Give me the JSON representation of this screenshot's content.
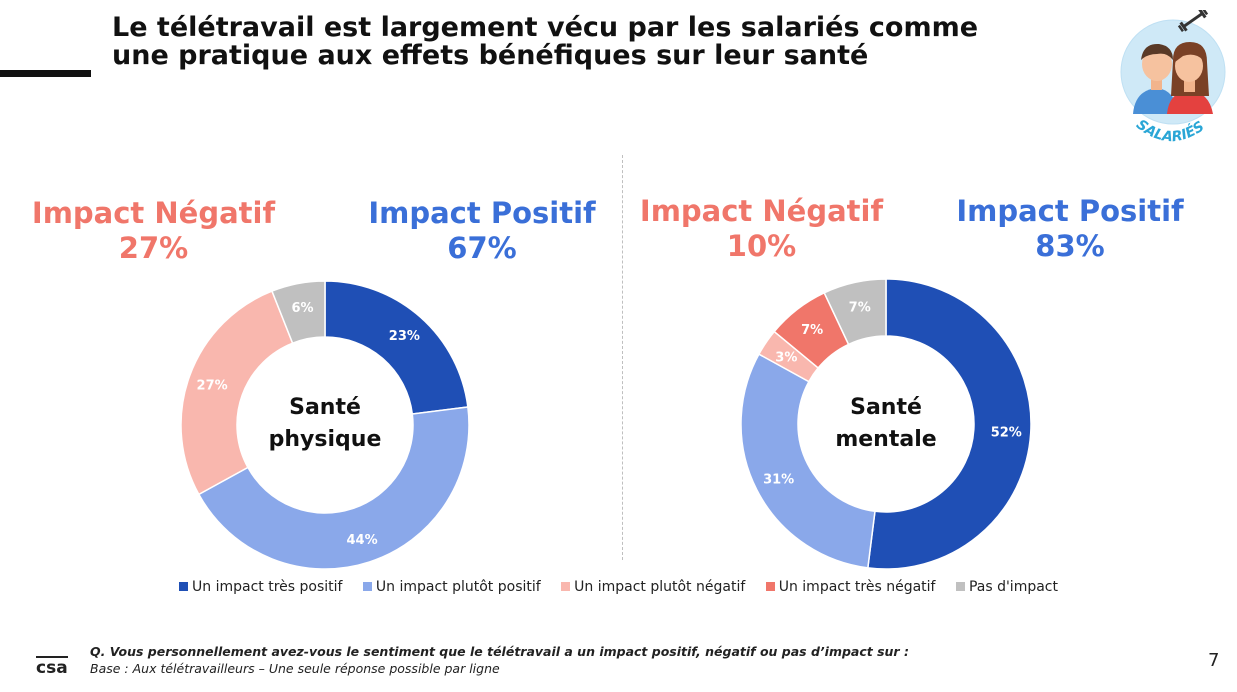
{
  "header": {
    "title_line1": "Le télétravail est largement vécu par les salariés comme",
    "title_line2": "une pratique aux effets bénéfiques sur leur santé",
    "badge_label": "SALARIÉS",
    "badge_icon": "couple-people-icon"
  },
  "panels": {
    "physique": {
      "neg_label": "Impact Négatif",
      "neg_value": "27%",
      "pos_label": "Impact Positif",
      "pos_value": "67%",
      "center_line1": "Santé",
      "center_line2": "physique"
    },
    "mentale": {
      "neg_label": "Impact Négatif",
      "neg_value": "10%",
      "pos_label": "Impact Positif",
      "pos_value": "83%",
      "center_line1": "Santé",
      "center_line2": "mentale"
    }
  },
  "chart_data": [
    {
      "type": "pie",
      "variant": "donut",
      "categories": [
        "Un impact très positif",
        "Un impact plutôt positif",
        "Un impact plutôt négatif",
        "Un impact très négatif",
        "Pas d'impact"
      ],
      "values": [
        23,
        44,
        27,
        0,
        6
      ],
      "data_labels": [
        "23%",
        "44%",
        "27%",
        "",
        "6%"
      ],
      "title": "",
      "center_text": "Santé physique"
    },
    {
      "type": "pie",
      "variant": "donut",
      "categories": [
        "Un impact très positif",
        "Un impact plutôt positif",
        "Un impact plutôt négatif",
        "Un impact très négatif",
        "Pas d'impact"
      ],
      "values": [
        52,
        31,
        3,
        7,
        7
      ],
      "data_labels": [
        "52%",
        "31%",
        "3%",
        "7%",
        "7%"
      ],
      "title": "",
      "center_text": "Santé mentale"
    }
  ],
  "legend": {
    "items": [
      {
        "label": "Un impact très positif",
        "color": "#1f4fb5"
      },
      {
        "label": "Un impact plutôt positif",
        "color": "#8aa8ea"
      },
      {
        "label": "Un impact plutôt négatif",
        "color": "#f9b7ae"
      },
      {
        "label": "Un impact très négatif",
        "color": "#f0766a"
      },
      {
        "label": "Pas d'impact",
        "color": "#c0c0c0"
      }
    ]
  },
  "colors": {
    "negative_text": "#f0766a",
    "positive_text": "#3a6fd8",
    "label_light": "#ffffff"
  },
  "footer": {
    "logo_text": "csa",
    "question": "Q. Vous personnellement avez-vous le sentiment que le télétravail a un impact positif, négatif ou pas d’impact sur :",
    "base": "Base : Aux télétravailleurs – Une seule réponse possible par ligne",
    "page_number": "7"
  }
}
